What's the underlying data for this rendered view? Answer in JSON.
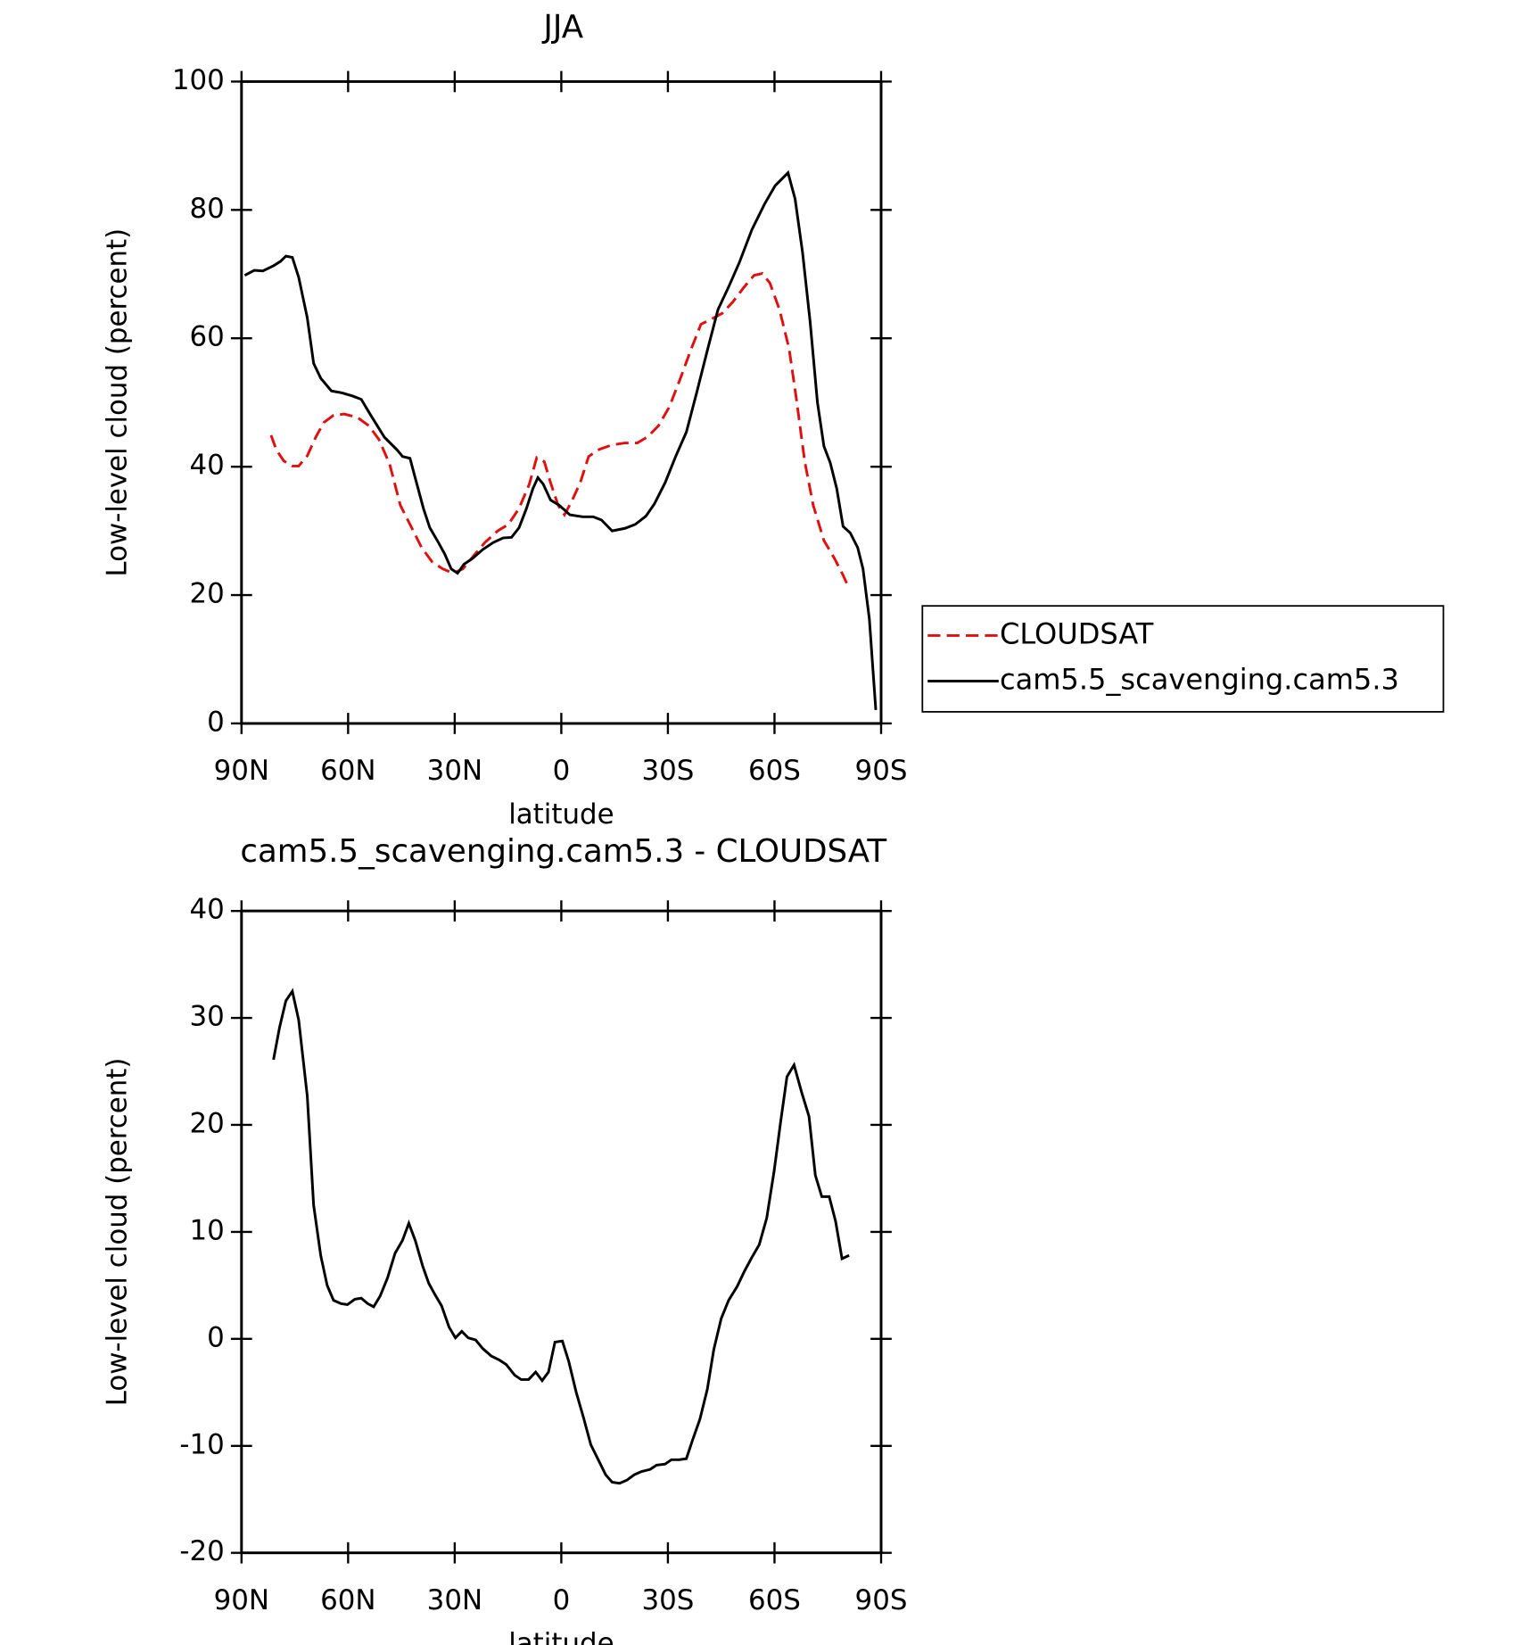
{
  "chart_data": [
    {
      "type": "line",
      "title": "JJA",
      "xlabel": "latitude",
      "ylabel": "Low-level cloud (percent)",
      "xlim": [
        90,
        -90
      ],
      "xticks": [
        {
          "value": 90,
          "label": "90N"
        },
        {
          "value": 60,
          "label": "60N"
        },
        {
          "value": 30,
          "label": "30N"
        },
        0,
        {
          "value": -30,
          "label": "30S"
        },
        {
          "value": -60,
          "label": "60S"
        },
        {
          "value": -90,
          "label": "90S"
        }
      ],
      "ylim": [
        0,
        100
      ],
      "yticks": [
        0,
        20,
        40,
        60,
        80,
        100
      ],
      "legend": "outside-right",
      "series": [
        {
          "name": "CLOUDSAT",
          "color": "#e01010",
          "dash": "dashed",
          "x": [
            81.7,
            80.2,
            78.1,
            75.7,
            73.9,
            71.5,
            69.1,
            66.8,
            64.1,
            61.1,
            57.5,
            54.2,
            51.3,
            48.3,
            45.3,
            42.3,
            39.3,
            36.4,
            33.4,
            30.4,
            27.7,
            24.7,
            21.5,
            17.9,
            14.9,
            11.9,
            9,
            6.9,
            4.8,
            3,
            0.9,
            -0.9,
            -3,
            -5.4,
            -7.7,
            -10.7,
            -14.3,
            -17.9,
            -21.4,
            -24.4,
            -27.4,
            -30.4,
            -33.4,
            -36.4,
            -39.3,
            -42.3,
            -45.3,
            -48.3,
            -51.2,
            -54.2,
            -56.6,
            -58.7,
            -61.4,
            -64.1,
            -66.1,
            -68.5,
            -70.9,
            -73.9,
            -76.9,
            -79.3,
            -81
          ],
          "values": [
            44.9,
            42.6,
            40.9,
            40.1,
            40.1,
            41.7,
            44.6,
            46.9,
            48,
            48.2,
            47.7,
            46.4,
            44.2,
            40.4,
            34,
            30.7,
            27.4,
            25.2,
            24.1,
            23.4,
            24.1,
            26.1,
            28.2,
            30,
            31,
            33.5,
            37.3,
            41.4,
            40.8,
            37.5,
            34,
            32.5,
            34.7,
            37.6,
            41.6,
            42.7,
            43.4,
            43.7,
            43.7,
            44.7,
            46.4,
            49.3,
            53.6,
            58.1,
            62.2,
            63,
            63.9,
            65.7,
            67.8,
            69.8,
            70.1,
            68.6,
            64.5,
            58.4,
            50.8,
            40.8,
            34,
            28.5,
            25.7,
            23.1,
            21
          ]
        },
        {
          "name": "cam5.5_scavenging.cam5.3",
          "color": "#000000",
          "dash": "solid",
          "x": [
            89.1,
            86.4,
            84,
            81,
            79,
            77.5,
            75.7,
            73.9,
            71.5,
            69.7,
            67.7,
            64.7,
            61.7,
            58.7,
            56.3,
            53.6,
            49.8,
            46.2,
            44.7,
            42.6,
            40.8,
            38.8,
            37,
            34.6,
            32.8,
            31,
            29.2,
            27.4,
            25,
            22.1,
            19.1,
            16.4,
            14,
            11.9,
            9.8,
            8,
            6.6,
            5.1,
            3,
            0.6,
            -2.4,
            -6,
            -9,
            -11.3,
            -14.3,
            -17.9,
            -20.8,
            -23.8,
            -26.2,
            -29.2,
            -32.2,
            -35.2,
            -38.1,
            -41.1,
            -44.1,
            -47.1,
            -50.1,
            -53.6,
            -57.2,
            -60.2,
            -63.8,
            -65.8,
            -67.9,
            -70,
            -72.1,
            -73.9,
            -75.7,
            -77.5,
            -79.3,
            -81.3,
            -83.4,
            -84.9,
            -86.7,
            -88.5
          ],
          "values": [
            69.8,
            70.6,
            70.5,
            71.3,
            72,
            72.8,
            72.6,
            69.5,
            63.2,
            56.1,
            53.8,
            51.8,
            51.5,
            51,
            50.5,
            48,
            44.6,
            42.6,
            41.6,
            41.3,
            37.6,
            33.5,
            30.5,
            28.2,
            26.4,
            24.1,
            23.4,
            24.8,
            25.7,
            27.1,
            28.2,
            28.9,
            29,
            30.5,
            33.5,
            36.6,
            38.3,
            37.3,
            34.8,
            34,
            32.5,
            32.2,
            32.2,
            31.7,
            30,
            30.4,
            31,
            32.3,
            34.2,
            37.5,
            41.6,
            45.4,
            51.5,
            58.1,
            64.5,
            68,
            71.8,
            76.9,
            80.9,
            83.8,
            85.8,
            81.7,
            73.4,
            62.7,
            50,
            43.2,
            40.6,
            36.6,
            30.7,
            29.7,
            27.4,
            24.1,
            16.3,
            2.1
          ]
        }
      ]
    },
    {
      "type": "line",
      "title": "cam5.5_scavenging.cam5.3 - CLOUDSAT",
      "xlabel": "latitude",
      "ylabel": "Low-level cloud (percent)",
      "xlim": [
        90,
        -90
      ],
      "xticks": [
        {
          "value": 90,
          "label": "90N"
        },
        {
          "value": 60,
          "label": "60N"
        },
        {
          "value": 30,
          "label": "30N"
        },
        0,
        {
          "value": -30,
          "label": "30S"
        },
        {
          "value": -60,
          "label": "60S"
        },
        {
          "value": -90,
          "label": "90S"
        }
      ],
      "ylim": [
        -20,
        40
      ],
      "yticks": [
        -20,
        -10,
        0,
        10,
        20,
        30,
        40
      ],
      "series": [
        {
          "color": "#000000",
          "dash": "solid",
          "x": [
            81,
            79.3,
            77.5,
            75.7,
            73.9,
            71.5,
            69.7,
            67.7,
            65.9,
            64.1,
            62,
            60.2,
            58.1,
            56.3,
            54.5,
            52.8,
            51,
            48.9,
            46.8,
            44.7,
            42.9,
            41.1,
            39,
            37.3,
            35.5,
            33.7,
            31.6,
            29.8,
            28,
            26.2,
            24.1,
            22.1,
            19.7,
            17.3,
            15.5,
            13.1,
            11.3,
            9.2,
            7.2,
            5.4,
            3.6,
            1.8,
            -0.3,
            -2.1,
            -4.2,
            -6.2,
            -8.3,
            -10.4,
            -12.5,
            -14.3,
            -16.4,
            -18.5,
            -20.5,
            -22.6,
            -25,
            -26.8,
            -29.2,
            -31,
            -33.1,
            -35.2,
            -36.9,
            -39,
            -41.1,
            -42.9,
            -45,
            -47.1,
            -49.5,
            -51.5,
            -53.6,
            -55.7,
            -57.8,
            -59.9,
            -61.7,
            -63.5,
            -65.5,
            -67.6,
            -69.7,
            -71.5,
            -73.3,
            -75.4,
            -77.2,
            -79,
            -81
          ],
          "values": [
            26.1,
            29.1,
            31.6,
            32.5,
            29.8,
            22.7,
            12.5,
            7.8,
            5,
            3.6,
            3.3,
            3.2,
            3.7,
            3.8,
            3.3,
            3,
            4,
            5.7,
            8,
            9.2,
            10.8,
            9.2,
            6.8,
            5.2,
            4.1,
            3.1,
            1.1,
            0.1,
            0.7,
            0.1,
            -0.1,
            -0.9,
            -1.6,
            -2,
            -2.4,
            -3.4,
            -3.8,
            -3.8,
            -3.1,
            -3.9,
            -3.1,
            -0.3,
            -0.2,
            -2.1,
            -5,
            -7.3,
            -9.9,
            -11.3,
            -12.7,
            -13.4,
            -13.5,
            -13.2,
            -12.7,
            -12.4,
            -12.2,
            -11.8,
            -11.7,
            -11.3,
            -11.3,
            -11.2,
            -9.5,
            -7.5,
            -4.7,
            -1,
            1.9,
            3.6,
            4.9,
            6.3,
            7.6,
            8.8,
            11.3,
            15.7,
            20.2,
            24.5,
            25.6,
            23.1,
            20.8,
            15.3,
            13.3,
            13.3,
            11,
            7.5,
            7.8
          ]
        }
      ]
    }
  ]
}
